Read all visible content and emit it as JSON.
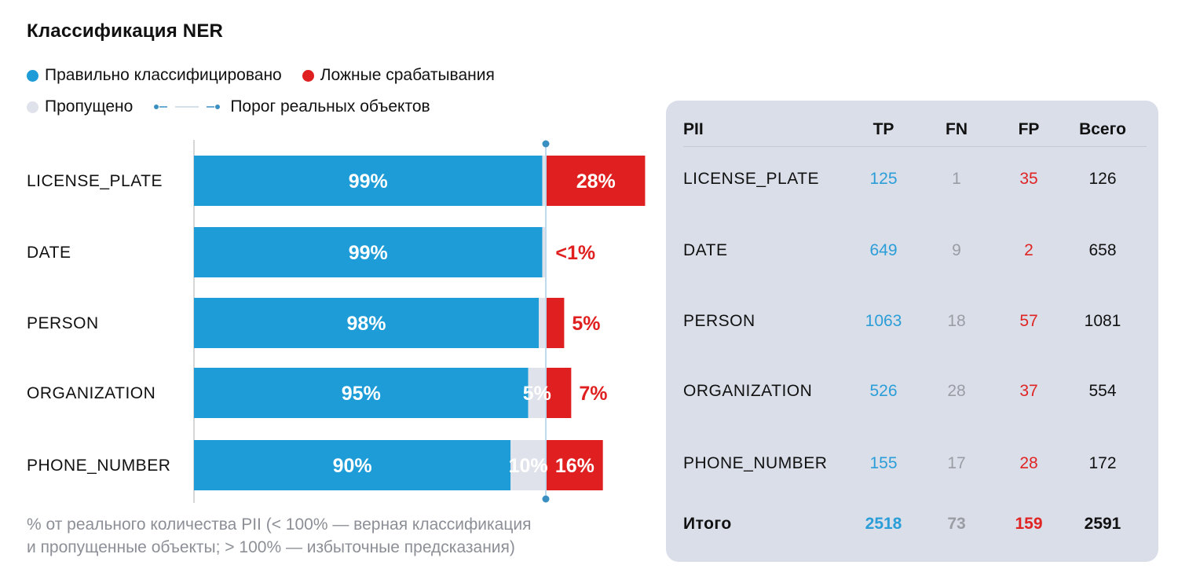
{
  "title": "Классификация NER",
  "legend": {
    "correct": "Правильно классифицировано",
    "false_positive": "Ложные срабатывания",
    "missed": "Пропущено",
    "threshold": "Порог реальных объектов"
  },
  "colors": {
    "correct": "#1e9cd7",
    "false_positive": "#e02020",
    "missed": "#dfe2ea",
    "threshold": "#3a8fc2",
    "panel": "#d9dee9"
  },
  "footnote": {
    "line1": "% от реального количества PII (< 100% — верная классификация",
    "line2": "и пропущенные объекты; > 100% — избыточные предсказания)"
  },
  "chart_data": {
    "type": "bar",
    "orientation": "horizontal",
    "stacked": true,
    "categories": [
      "LICENSE_PLATE",
      "DATE",
      "PERSON",
      "ORGANIZATION",
      "PHONE_NUMBER"
    ],
    "series": [
      {
        "name": "Правильно классифицировано",
        "values": [
          99,
          99,
          98,
          95,
          90
        ],
        "labels": [
          "99%",
          "99%",
          "98%",
          "95%",
          "90%"
        ]
      },
      {
        "name": "Пропущено",
        "values": [
          1,
          1,
          2,
          5,
          10
        ],
        "labels": [
          "",
          "",
          "",
          "5%",
          "10%"
        ]
      },
      {
        "name": "Ложные срабатывания",
        "values": [
          28,
          0.3,
          5,
          7,
          16
        ],
        "labels": [
          "28%",
          "<1%",
          "5%",
          "7%",
          "16%"
        ]
      }
    ],
    "threshold": 100,
    "xlim": [
      0,
      130
    ]
  },
  "table": {
    "headers": {
      "pii": "PII",
      "tp": "TP",
      "fn": "FN",
      "fp": "FP",
      "total": "Всего"
    },
    "rows": [
      {
        "pii": "LICENSE_PLATE",
        "tp": "125",
        "fn": "1",
        "fp": "35",
        "total": "126"
      },
      {
        "pii": "DATE",
        "tp": "649",
        "fn": "9",
        "fp": "2",
        "total": "658"
      },
      {
        "pii": "PERSON",
        "tp": "1063",
        "fn": "18",
        "fp": "57",
        "total": "1081"
      },
      {
        "pii": "ORGANIZATION",
        "tp": "526",
        "fn": "28",
        "fp": "37",
        "total": "554"
      },
      {
        "pii": "PHONE_NUMBER",
        "tp": "155",
        "fn": "17",
        "fp": "28",
        "total": "172"
      }
    ],
    "totals": {
      "label": "Итого",
      "tp": "2518",
      "fn": "73",
      "fp": "159",
      "total": "2591"
    }
  }
}
